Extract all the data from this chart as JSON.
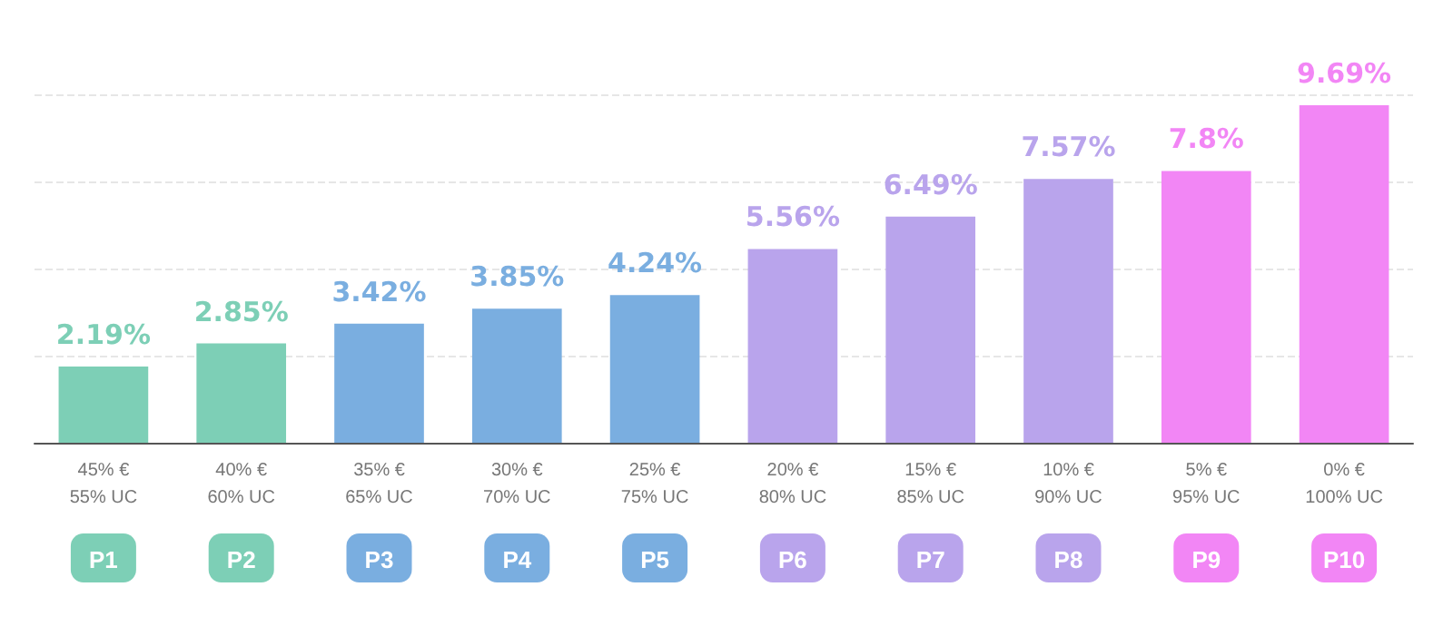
{
  "chart_data": {
    "type": "bar",
    "categories": [
      "45% €\n55% UC",
      "40% €\n60% UC",
      "35% €\n65% UC",
      "30% €\n70% UC",
      "25% €\n75% UC",
      "20% €\n80% UC",
      "15% €\n85% UC",
      "10% €\n90% UC",
      "5% €\n95% UC",
      "0% €\n100% UC"
    ],
    "values": [
      2.19,
      2.85,
      3.42,
      3.85,
      4.24,
      5.56,
      6.49,
      7.57,
      7.8,
      9.69
    ],
    "value_labels": [
      "2.19%",
      "2.85%",
      "3.42%",
      "3.85%",
      "4.24%",
      "5.56%",
      "6.49%",
      "7.57%",
      "7.8%",
      "9.69%"
    ],
    "colors": [
      "#7dcfb6",
      "#7dcfb6",
      "#7aaee0",
      "#7aaee0",
      "#7aaee0",
      "#b9a4ec",
      "#b9a4ec",
      "#b9a4ec",
      "#f286f5",
      "#f286f5"
    ],
    "ylim": [
      0,
      10
    ],
    "yticks": [
      {
        "value": 0,
        "label": null
      },
      {
        "value": 2.5,
        "label": null
      },
      {
        "value": 5,
        "label": null
      },
      {
        "value": 7.5,
        "label": null
      },
      {
        "value": 10,
        "label": null
      }
    ],
    "grid": "y",
    "annotations": [
      "P1",
      "P2",
      "P3",
      "P4",
      "P5",
      "P6",
      "P7",
      "P8",
      "P9",
      "P10"
    ]
  }
}
